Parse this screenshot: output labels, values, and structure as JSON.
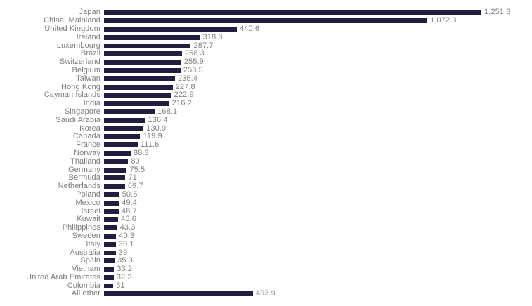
{
  "chart_data": {
    "type": "bar",
    "orientation": "horizontal",
    "title": "",
    "xlabel": "",
    "ylabel": "",
    "grid": false,
    "legend": false,
    "axis_ticks_visible": false,
    "xlim": [
      0,
      1300
    ],
    "bar_color": "#231d3e",
    "label_color": "#7c7c7c",
    "value_label_color": "#828282",
    "categories": [
      "Japan",
      "China, Mainland",
      "United Kingdom",
      "Ireland",
      "Luxembourg",
      "Brazil",
      "Switzerland",
      "Belgium",
      "Taiwan",
      "Hong Kong",
      "Cayman Islands",
      "India",
      "Singapore",
      "Saudi Arabia",
      "Korea",
      "Canada",
      "France",
      "Norway",
      "Thailand",
      "Germany",
      "Bermuda",
      "Netherlands",
      "Poland",
      "Mexico",
      "Israel",
      "Kuwait",
      "Philippines",
      "Sweden",
      "Italy",
      "Australia",
      "Spain",
      "Vietnam",
      "United Arab Emirates",
      "Colombia",
      "All other"
    ],
    "values": [
      1251.3,
      1072.3,
      440.6,
      318.3,
      287.7,
      258.3,
      255.9,
      253.5,
      235.4,
      227.8,
      222.9,
      216.2,
      168.1,
      136.4,
      130.9,
      119.9,
      111.6,
      88.3,
      80,
      75.5,
      71,
      69.7,
      50.5,
      49.4,
      48.7,
      46.6,
      43.3,
      40.3,
      39.1,
      39,
      35.3,
      33.2,
      32.2,
      31,
      493.9
    ],
    "value_labels": [
      "1,251.3",
      "1,072.3",
      "440.6",
      "318.3",
      "287.7",
      "258.3",
      "255.9",
      "253.5",
      "235.4",
      "227.8",
      "222.9",
      "216.2",
      "168.1",
      "136.4",
      "130.9",
      "119.9",
      "111.6",
      "88.3",
      "80",
      "75.5",
      "71",
      "69.7",
      "50.5",
      "49.4",
      "48.7",
      "46.6",
      "43.3",
      "40.3",
      "39.1",
      "39",
      "35.3",
      "33.2",
      "32.2",
      "31",
      "493.9"
    ]
  }
}
